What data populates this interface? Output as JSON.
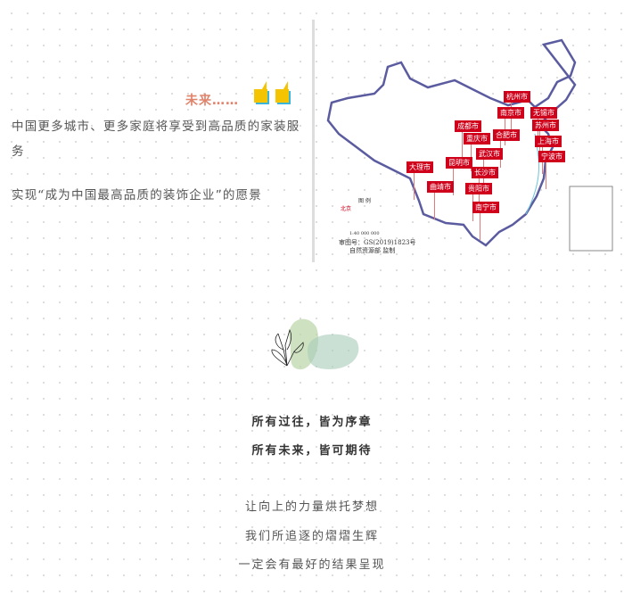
{
  "intro": {
    "future": "未来……",
    "line1": "中国更多城市、更多家庭将享受到高品质的家装服务",
    "line2": "实现“成为中国最高品质的装饰企业”的愿景"
  },
  "map": {
    "cities": [
      "杭州市",
      "南京市",
      "无锡市",
      "成都市",
      "苏州市",
      "合肥市",
      "重庆市",
      "上海市",
      "武汉市",
      "宁波市",
      "大理市",
      "昆明市",
      "长沙市",
      "曲靖市",
      "贵阳市",
      "南宁市"
    ],
    "legend_title": "图 例",
    "legend_capital": "北京",
    "scale": "1:40 000 000",
    "approval": "审图号：GS(2019)1823号",
    "issuer": "自然资源部 监制"
  },
  "colors": {
    "accent": "#e0846c",
    "city_label": "#d0021b",
    "quote": "#f5c400"
  },
  "verse": {
    "bold1": "所有过往，皆为序章",
    "bold2": "所有未来，皆可期待",
    "l1": "让向上的力量烘托梦想",
    "l2": "我们所追逐的熠熠生辉",
    "l3": "一定会有最好的结果呈现"
  }
}
